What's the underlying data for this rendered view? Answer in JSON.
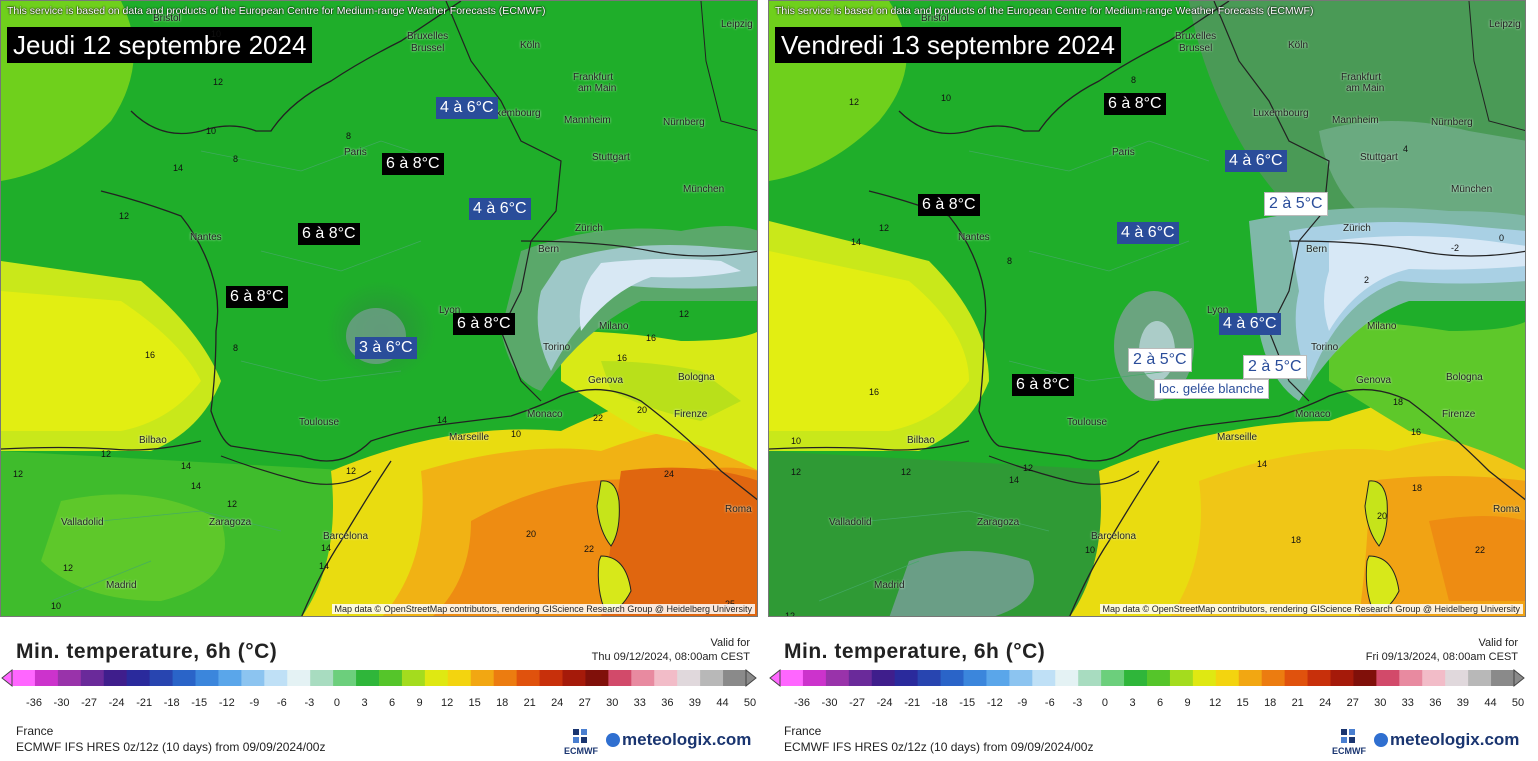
{
  "attribution_top": "This service is based on data and products of the European Centre for Medium-range Weather Forecasts (ECMWF)",
  "attribution_bottom": "Map data © OpenStreetMap contributors, rendering GIScience Research Group @ Heidelberg University",
  "legend_title": "Min. temperature, 6h (°C)",
  "valid_for_label": "Valid for",
  "region": "France",
  "model_line": "ECMWF IFS HRES 0z/12z (10 days) from 09/09/2024/00z",
  "ecmwf_logo_text": "ECMWF",
  "brand": "meteologix.com",
  "colorbar_ticks": [
    "-36",
    "-30",
    "-27",
    "-24",
    "-21",
    "-18",
    "-15",
    "-12",
    "-9",
    "-6",
    "-3",
    "0",
    "3",
    "6",
    "9",
    "12",
    "15",
    "18",
    "21",
    "24",
    "27",
    "30",
    "33",
    "36",
    "39",
    "44",
    "50"
  ],
  "colors": {
    "green": "#1fae2a",
    "dark_green": "#2f8a3a",
    "yellow_green": "#c9e81a",
    "yellow": "#e9f20f",
    "orange": "#f19612",
    "dark_orange": "#e0660f",
    "cold_blue": "#a8cce8",
    "label_blue": "#2a4d9a"
  },
  "panels": [
    {
      "date_title": "Jeudi 12 septembre 2024",
      "valid_time": "Thu 09/12/2024, 08:00am CEST",
      "labels": [
        {
          "text": "4 à 6°C",
          "style": "blue"
        },
        {
          "text": "6 à 8°C",
          "style": "black"
        },
        {
          "text": "4 à 6°C",
          "style": "blue"
        },
        {
          "text": "6 à 8°C",
          "style": "black"
        },
        {
          "text": "6 à 8°C",
          "style": "black"
        },
        {
          "text": "6 à 8°C",
          "style": "black"
        },
        {
          "text": "3 à 6°C",
          "style": "blue"
        }
      ],
      "cities": [
        "Bristol",
        "Bruxelles",
        "Brussel",
        "Köln",
        "Leipzig",
        "Frankfurt",
        "am Main",
        "Luxembourg",
        "Mannheim",
        "Nürnberg",
        "Paris",
        "Stuttgart",
        "München",
        "Nantes",
        "Bern",
        "Zürich",
        "Lyon",
        "Milano",
        "Torino",
        "Genova",
        "Bologna",
        "Monaco",
        "Firenze",
        "Toulouse",
        "Marseille",
        "Bilbao",
        "Valladolid",
        "Zaragoza",
        "Barcelona",
        "Madrid",
        "Roma"
      ],
      "values": [
        "12",
        "10",
        "14",
        "8",
        "8",
        "12",
        "16",
        "14",
        "12",
        "10",
        "12",
        "12",
        "14",
        "22",
        "20",
        "24",
        "22",
        "20",
        "16",
        "10",
        "14",
        "12",
        "12",
        "16",
        "8",
        "14",
        "12",
        "14",
        "10",
        "25"
      ]
    },
    {
      "date_title": "Vendredi 13 septembre 2024",
      "valid_time": "Fri 09/13/2024, 08:00am CEST",
      "labels": [
        {
          "text": "6 à 8°C",
          "style": "black"
        },
        {
          "text": "4 à 6°C",
          "style": "blue"
        },
        {
          "text": "6 à 8°C",
          "style": "black"
        },
        {
          "text": "2 à 5°C",
          "style": "white"
        },
        {
          "text": "4 à 6°C",
          "style": "blue"
        },
        {
          "text": "4 à 6°C",
          "style": "blue"
        },
        {
          "text": "2 à 5°C",
          "style": "white"
        },
        {
          "text": "6 à 8°C",
          "style": "black"
        },
        {
          "text": "2 à 5°C",
          "style": "white"
        },
        {
          "text": "loc. gelée blanche",
          "style": "white"
        }
      ],
      "cities": [
        "Bristol",
        "Bruxelles",
        "Brussel",
        "Köln",
        "Leipzig",
        "Frankfurt",
        "am Main",
        "Luxembourg",
        "Mannheim",
        "Nürnberg",
        "Paris",
        "Stuttgart",
        "München",
        "Nantes",
        "Bern",
        "Zürich",
        "Lyon",
        "Milano",
        "Torino",
        "Genova",
        "Bologna",
        "Monaco",
        "Firenze",
        "Toulouse",
        "Marseille",
        "Bilbao",
        "Valladolid",
        "Zaragoza",
        "Barcelona",
        "Madrid",
        "Roma"
      ],
      "values": [
        "12",
        "10",
        "14",
        "8",
        "12",
        "16",
        "10",
        "12",
        "12",
        "18",
        "16",
        "14",
        "20",
        "18",
        "22",
        "10",
        "14",
        "12",
        "12",
        "8",
        "18",
        "4",
        "0",
        "-2",
        "2"
      ]
    }
  ]
}
